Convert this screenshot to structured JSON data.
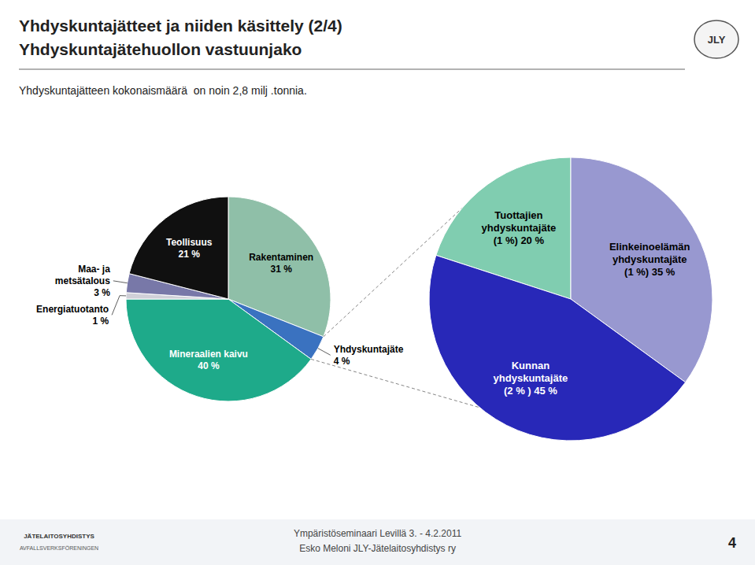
{
  "chart_data": [
    {
      "type": "pie",
      "title": "Yhdyskuntajätteet ja niiden käsittely (2/4)",
      "subtitle": "Yhdyskuntajätehuollon vastuunjako",
      "annotations": [
        "Yhdyskuntajätteen kokonaismäärä  on noin 2,8 milj .tonnia.",
        "JLY",
        "Ympäristöseminaari Levillä 3. - 4.2.2011",
        "Esko Meloni JLY-Jätelaitosyhdistys ry",
        "4",
        "JÄTELAITOSYHDISTYS",
        "AVFALLSVERKSFÖRENINGEN"
      ],
      "values": [
        31,
        4,
        40,
        1,
        3,
        21
      ],
      "value_labels": [
        "Rakentaminen\n31 %",
        "Yhdyskuntajäte\n4 %",
        "Mineraalien kaivu\n40 %",
        "Energiatuotanto\n1 %",
        "Maa- ja\nmetsätalous\n3 %",
        "Teollisuus\n21 %"
      ],
      "colors": [
        "#8fbfa8",
        "#3a72c0",
        "#1eaa8a",
        "#d0d0d8",
        "#7878a8",
        "#101010"
      ],
      "data_labels": true
    },
    {
      "type": "pie",
      "values": [
        20,
        35,
        45
      ],
      "value_labels": [
        "Tuottajien\nyhdyskuntajäte\n(1 %) 20 %",
        "Elinkeinoelämän\nyhdyskuntajäte\n(1 %) 35 %",
        "Kunnan\nyhdyskuntajäte\n(2 % ) 45 %"
      ],
      "colors": [
        "#80cdb0",
        "#9898d0",
        "#2828b8"
      ],
      "data_labels": true
    }
  ]
}
